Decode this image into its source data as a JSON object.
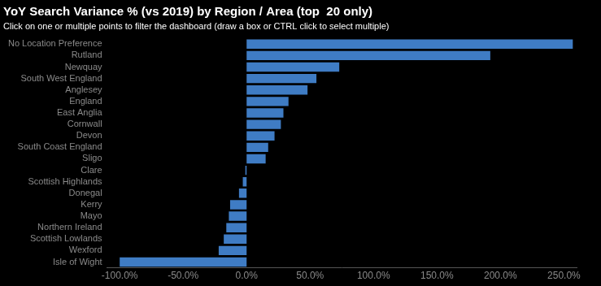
{
  "chart_data": {
    "type": "bar",
    "orientation": "horizontal",
    "title": "YoY Search Variance % (vs 2019) by Region / Area (top  20 only)",
    "subtitle": "Click on one or multiple points to filter the dashboard (draw a box or CTRL click to select multiple)",
    "categories": [
      "No Location Preference",
      "Rutland",
      "Newquay",
      "South West England",
      "Anglesey",
      "England",
      "East Anglia",
      "Cornwall",
      "Devon",
      "South Coast England",
      "Sligo",
      "Clare",
      "Scottish Highlands",
      "Donegal",
      "Kerry",
      "Mayo",
      "Northern Ireland",
      "Scottish Lowlands",
      "Wexford",
      "Isle of Wight"
    ],
    "values": [
      257,
      192,
      73,
      55,
      48,
      33,
      29,
      27,
      22,
      17,
      15,
      -1,
      -3,
      -6,
      -13,
      -14,
      -16,
      -18,
      -22,
      -100
    ],
    "color": "#3f7cc4",
    "xlim": [
      -110,
      260
    ],
    "xticks": [
      {
        "value": -100,
        "label": "-100.0%"
      },
      {
        "value": -50,
        "label": "-50.0%"
      },
      {
        "value": 0,
        "label": "0.0%"
      },
      {
        "value": 50,
        "label": "50.0%"
      },
      {
        "value": 100,
        "label": "100.0%"
      },
      {
        "value": 150,
        "label": "150.0%"
      },
      {
        "value": 200,
        "label": "200.0%"
      },
      {
        "value": 250,
        "label": "250.0%"
      }
    ],
    "grid": false
  }
}
